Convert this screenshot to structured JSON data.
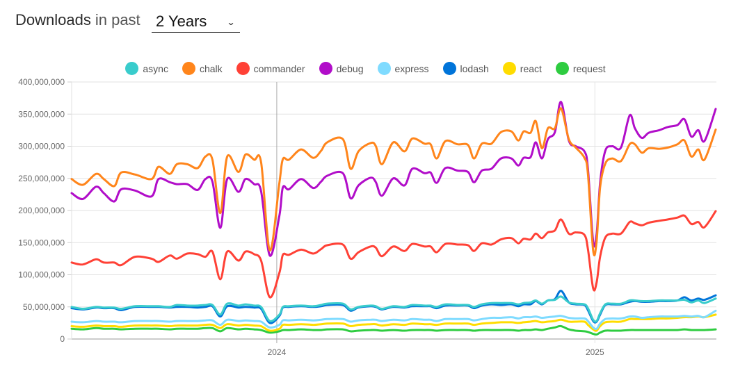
{
  "header": {
    "title_strong": "Downloads",
    "title_light": "in past",
    "period": "2 Years"
  },
  "chart_data": {
    "type": "line",
    "ylim": [
      0,
      400000000
    ],
    "grid": true,
    "legend_position": "top",
    "yticks": {
      "values": [
        0,
        50000000,
        100000000,
        150000000,
        200000000,
        250000000,
        300000000,
        350000000,
        400000000
      ],
      "labels": [
        "0",
        "50,000,000",
        "100,000,000",
        "150,000,000",
        "200,000,000",
        "250,000,000",
        "300,000,000",
        "350,000,000",
        "400,000,000"
      ]
    },
    "xticks": {
      "values": [
        "2024-01-01",
        "2025-01-01"
      ],
      "labels": [
        "2024",
        "2025"
      ]
    },
    "x": [
      "2023-05-10",
      "2023-05-23",
      "2023-06-07",
      "2023-06-16",
      "2023-06-28",
      "2023-07-06",
      "2023-07-22",
      "2023-08-10",
      "2023-08-18",
      "2023-08-31",
      "2023-09-08",
      "2023-09-20",
      "2023-10-02",
      "2023-10-11",
      "2023-10-19",
      "2023-10-28",
      "2023-11-05",
      "2023-11-18",
      "2023-11-26",
      "2023-12-06",
      "2023-12-14",
      "2023-12-24",
      "2024-01-04",
      "2024-01-08",
      "2024-01-15",
      "2024-01-29",
      "2024-02-12",
      "2024-02-21",
      "2024-02-28",
      "2024-03-17",
      "2024-03-26",
      "2024-04-04",
      "2024-04-18",
      "2024-04-24",
      "2024-05-01",
      "2024-05-14",
      "2024-05-27",
      "2024-06-05",
      "2024-06-19",
      "2024-06-26",
      "2024-07-03",
      "2024-07-13",
      "2024-07-27",
      "2024-08-08",
      "2024-08-15",
      "2024-08-24",
      "2024-09-04",
      "2024-09-15",
      "2024-09-27",
      "2024-10-05",
      "2024-10-11",
      "2024-10-19",
      "2024-10-25",
      "2024-11-01",
      "2024-11-08",
      "2024-11-16",
      "2024-11-23",
      "2024-12-02",
      "2024-12-10",
      "2024-12-20",
      "2024-12-24",
      "2024-12-30",
      "2025-01-03",
      "2025-01-07",
      "2025-01-13",
      "2025-01-21",
      "2025-01-31",
      "2025-02-10",
      "2025-02-16",
      "2025-02-24",
      "2025-03-04",
      "2025-03-16",
      "2025-03-26",
      "2025-04-06",
      "2025-04-14",
      "2025-04-22",
      "2025-04-30",
      "2025-05-07",
      "2025-05-20"
    ],
    "unit": "millions",
    "series": [
      {
        "name": "async",
        "color": "#39cccc",
        "values": [
          50,
          47,
          50,
          49,
          49,
          47,
          51,
          51,
          51,
          50,
          53,
          52,
          52,
          53,
          53,
          38,
          55,
          52,
          54,
          52,
          50,
          28,
          38,
          50,
          51,
          52,
          51,
          53,
          55,
          55,
          46,
          50,
          52,
          51,
          47,
          51,
          50,
          53,
          52,
          52,
          50,
          54,
          53,
          53,
          50,
          54,
          56,
          56,
          56,
          54,
          56,
          57,
          60,
          55,
          60,
          61,
          66,
          57,
          55,
          54,
          48,
          30,
          28,
          40,
          54,
          55,
          55,
          60,
          60,
          59,
          59,
          60,
          60,
          60,
          61,
          57,
          60,
          56,
          63
        ]
      },
      {
        "name": "chalk",
        "color": "#ff851b",
        "values": [
          249,
          240,
          257,
          249,
          238,
          259,
          256,
          249,
          268,
          257,
          272,
          272,
          266,
          284,
          279,
          196,
          284,
          260,
          287,
          279,
          275,
          138,
          243,
          280,
          279,
          295,
          282,
          293,
          306,
          311,
          265,
          292,
          305,
          300,
          272,
          306,
          292,
          312,
          304,
          303,
          281,
          308,
          303,
          302,
          281,
          304,
          304,
          322,
          323,
          309,
          323,
          321,
          339,
          297,
          328,
          328,
          359,
          311,
          298,
          282,
          257,
          138,
          152,
          236,
          273,
          281,
          277,
          303,
          303,
          290,
          297,
          296,
          298,
          303,
          309,
          284,
          295,
          279,
          326
        ]
      },
      {
        "name": "commander",
        "color": "#ff4136",
        "values": [
          119,
          116,
          124,
          119,
          119,
          115,
          128,
          125,
          120,
          130,
          125,
          133,
          132,
          128,
          136,
          93,
          136,
          122,
          136,
          132,
          122,
          65,
          103,
          131,
          131,
          139,
          133,
          140,
          146,
          147,
          125,
          135,
          144,
          142,
          129,
          144,
          137,
          148,
          144,
          144,
          135,
          148,
          147,
          146,
          137,
          149,
          147,
          155,
          157,
          149,
          156,
          155,
          164,
          157,
          166,
          169,
          186,
          164,
          166,
          162,
          140,
          79,
          88,
          128,
          158,
          164,
          164,
          182,
          180,
          177,
          181,
          184,
          186,
          189,
          192,
          179,
          182,
          174,
          199
        ]
      },
      {
        "name": "debug",
        "color": "#b10dc9",
        "values": [
          227,
          218,
          237,
          227,
          214,
          233,
          231,
          222,
          249,
          244,
          241,
          241,
          232,
          249,
          245,
          173,
          249,
          229,
          249,
          241,
          230,
          130,
          192,
          236,
          233,
          249,
          235,
          245,
          254,
          258,
          219,
          239,
          251,
          244,
          223,
          250,
          239,
          265,
          258,
          259,
          243,
          266,
          262,
          260,
          244,
          262,
          265,
          281,
          281,
          270,
          282,
          283,
          306,
          281,
          311,
          322,
          369,
          309,
          300,
          292,
          265,
          152,
          163,
          243,
          293,
          300,
          298,
          348,
          328,
          313,
          321,
          325,
          330,
          333,
          342,
          315,
          325,
          308,
          358
        ]
      },
      {
        "name": "express",
        "color": "#7fdbff",
        "values": [
          27,
          26,
          28,
          27,
          27,
          26,
          28,
          28,
          28,
          27,
          28,
          28,
          28,
          29,
          29,
          22,
          30,
          28,
          29,
          28,
          27,
          18,
          22,
          29,
          29,
          30,
          29,
          30,
          31,
          31,
          27,
          29,
          30,
          30,
          28,
          30,
          29,
          31,
          30,
          30,
          28,
          31,
          31,
          31,
          29,
          31,
          33,
          33,
          34,
          32,
          34,
          34,
          35,
          33,
          34,
          35,
          36,
          33,
          32,
          32,
          28,
          18,
          16,
          24,
          31,
          32,
          32,
          35,
          35,
          33,
          34,
          35,
          35,
          35,
          36,
          35,
          36,
          34,
          44
        ]
      },
      {
        "name": "lodash",
        "color": "#0074d9",
        "values": [
          48,
          46,
          49,
          48,
          48,
          45,
          50,
          50,
          50,
          49,
          50,
          50,
          49,
          50,
          51,
          35,
          51,
          49,
          50,
          49,
          47,
          25,
          36,
          49,
          50,
          51,
          50,
          51,
          53,
          53,
          44,
          49,
          51,
          50,
          46,
          50,
          49,
          51,
          51,
          51,
          48,
          52,
          52,
          52,
          48,
          52,
          54,
          53,
          54,
          51,
          54,
          54,
          59,
          54,
          60,
          62,
          75,
          57,
          54,
          53,
          45,
          28,
          27,
          38,
          53,
          54,
          54,
          58,
          59,
          58,
          58,
          59,
          59,
          60,
          65,
          60,
          63,
          61,
          68
        ]
      },
      {
        "name": "react",
        "color": "#ffdc00",
        "values": [
          20,
          19,
          21,
          20,
          20,
          19,
          21,
          21,
          21,
          20,
          21,
          21,
          21,
          22,
          22,
          17,
          23,
          21,
          22,
          21,
          20,
          13,
          16,
          22,
          22,
          23,
          22,
          23,
          24,
          24,
          20,
          22,
          23,
          23,
          21,
          23,
          22,
          24,
          23,
          23,
          22,
          24,
          24,
          24,
          22,
          24,
          25,
          26,
          26,
          25,
          26,
          27,
          28,
          26,
          27,
          28,
          30,
          27,
          27,
          27,
          22,
          15,
          13,
          20,
          26,
          27,
          27,
          31,
          31,
          31,
          31,
          32,
          32,
          33,
          34,
          34,
          35,
          34,
          38
        ]
      },
      {
        "name": "request",
        "color": "#2ecc40",
        "values": [
          16,
          15,
          17,
          16,
          16,
          15,
          16,
          16,
          16,
          15,
          16,
          16,
          16,
          17,
          17,
          12,
          17,
          15,
          16,
          15,
          14,
          10,
          12,
          14,
          14,
          15,
          14,
          14,
          15,
          15,
          12,
          13,
          14,
          14,
          13,
          14,
          13,
          14,
          14,
          14,
          13,
          14,
          14,
          14,
          13,
          14,
          14,
          14,
          14,
          13,
          14,
          14,
          15,
          14,
          16,
          18,
          20,
          15,
          13,
          12,
          11,
          8,
          7,
          10,
          13,
          13,
          13,
          14,
          14,
          14,
          14,
          14,
          14,
          14,
          15,
          14,
          14,
          14,
          15
        ]
      }
    ]
  }
}
